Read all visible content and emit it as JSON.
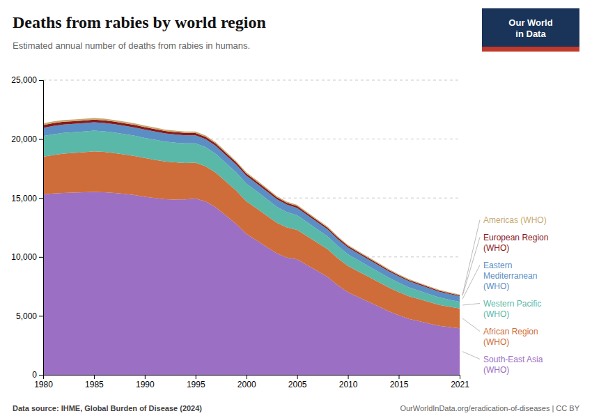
{
  "chart_data": {
    "type": "area",
    "title": "Deaths from rabies by world region",
    "subtitle": "Estimated annual number of deaths from rabies in humans.",
    "annotations": [
      "Data source: IHME, Global Burden of Disease (2024)",
      "OurWorldInData.org/eradication-of-diseases | CC BY",
      "Our World\nin Data"
    ],
    "x": [
      1980,
      1981,
      1982,
      1983,
      1984,
      1985,
      1986,
      1987,
      1988,
      1989,
      1990,
      1991,
      1992,
      1993,
      1994,
      1995,
      1996,
      1997,
      1998,
      1999,
      2000,
      2001,
      2002,
      2003,
      2004,
      2005,
      2006,
      2007,
      2008,
      2009,
      2010,
      2011,
      2012,
      2013,
      2014,
      2015,
      2016,
      2017,
      2018,
      2019,
      2020,
      2021
    ],
    "series": [
      {
        "name": "South-East Asia\n(WHO)",
        "color": "#9B6FC4",
        "values": [
          15300,
          15380,
          15430,
          15450,
          15480,
          15520,
          15490,
          15430,
          15350,
          15250,
          15100,
          15000,
          14900,
          14870,
          14880,
          14950,
          14700,
          14200,
          13500,
          12800,
          11950,
          11400,
          10850,
          10300,
          9950,
          9800,
          9300,
          8800,
          8300,
          7600,
          7000,
          6600,
          6200,
          5800,
          5400,
          5050,
          4750,
          4550,
          4350,
          4150,
          4050,
          3950
        ]
      },
      {
        "name": "African Region\n(WHO)",
        "color": "#CF6D3A",
        "values": [
          3200,
          3270,
          3340,
          3370,
          3400,
          3430,
          3420,
          3380,
          3340,
          3310,
          3290,
          3240,
          3200,
          3150,
          3090,
          3040,
          2990,
          2940,
          2880,
          2830,
          2770,
          2720,
          2660,
          2600,
          2550,
          2500,
          2450,
          2400,
          2350,
          2290,
          2230,
          2180,
          2130,
          2080,
          2020,
          1970,
          1920,
          1870,
          1820,
          1770,
          1720,
          1680
        ]
      },
      {
        "name": "Western Pacific\n(WHO)",
        "color": "#5AB8A8",
        "values": [
          1750,
          1760,
          1760,
          1760,
          1760,
          1760,
          1750,
          1740,
          1730,
          1720,
          1710,
          1700,
          1680,
          1670,
          1660,
          1640,
          1620,
          1590,
          1570,
          1540,
          1510,
          1470,
          1420,
          1350,
          1300,
          1240,
          1190,
          1140,
          1090,
          1040,
          990,
          950,
          910,
          870,
          830,
          790,
          750,
          710,
          670,
          635,
          600,
          560
        ]
      },
      {
        "name": "Eastern\nMediterranean\n(WHO)",
        "color": "#5B8EC4",
        "values": [
          700,
          705,
          708,
          710,
          712,
          714,
          712,
          710,
          708,
          706,
          703,
          700,
          697,
          694,
          691,
          688,
          685,
          680,
          674,
          668,
          661,
          654,
          646,
          638,
          630,
          622,
          613,
          604,
          595,
          586,
          577,
          568,
          559,
          550,
          541,
          532,
          523,
          514,
          505,
          496,
          487,
          478
        ]
      },
      {
        "name": "European Region\n(WHO)",
        "color": "#8B1A1A",
        "values": [
          240,
          236,
          232,
          229,
          226,
          223,
          220,
          217,
          215,
          212,
          210,
          207,
          205,
          202,
          200,
          197,
          195,
          192,
          189,
          185,
          180,
          175,
          170,
          165,
          160,
          155,
          150,
          145,
          140,
          135,
          130,
          125,
          120,
          115,
          110,
          105,
          100,
          95,
          90,
          85,
          80,
          75
        ]
      },
      {
        "name": "Americas (WHO)",
        "color": "#C8A870",
        "values": [
          150,
          148,
          146,
          144,
          142,
          140,
          138,
          136,
          134,
          132,
          130,
          128,
          126,
          124,
          122,
          120,
          118,
          116,
          114,
          112,
          110,
          108,
          106,
          104,
          102,
          100,
          98,
          96,
          94,
          92,
          90,
          88,
          86,
          84,
          82,
          80,
          78,
          76,
          74,
          72,
          70,
          68
        ]
      }
    ],
    "stacked": true,
    "xlim": [
      1980,
      2021
    ],
    "xticks": [
      1980,
      1985,
      1990,
      1995,
      2000,
      2005,
      2010,
      2015,
      2021
    ],
    "ylim": [
      0,
      25000
    ],
    "yticks": [
      0,
      {
        "value": 5000,
        "label": "5,000"
      },
      {
        "value": 10000,
        "label": "10,000"
      },
      {
        "value": 15000,
        "label": "15,000"
      },
      {
        "value": 20000,
        "label": "20,000"
      },
      {
        "value": 25000,
        "label": "25,000"
      }
    ],
    "grid": true,
    "legend": "right"
  }
}
